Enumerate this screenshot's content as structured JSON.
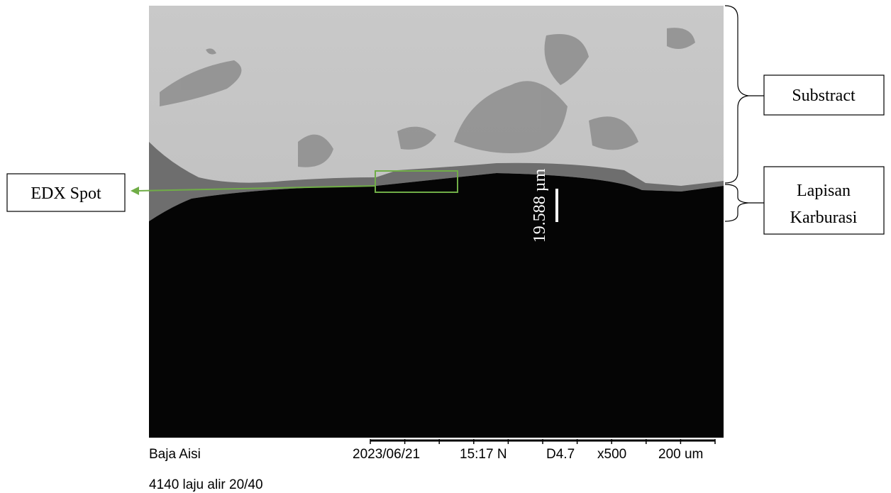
{
  "annotations": {
    "substrate_label": "Substract",
    "layer_label": [
      "Lapisan",
      "Karburasi"
    ],
    "edx_label": "EDX Spot",
    "measurement": "19.588 µm"
  },
  "footer": {
    "sample": [
      "Baja Aisi",
      "4140 laju alir 20/40"
    ],
    "date": "2023/06/21",
    "time": "15:17 N",
    "working_distance": "D4.7",
    "magnification": "x500",
    "scale": "200 um"
  }
}
